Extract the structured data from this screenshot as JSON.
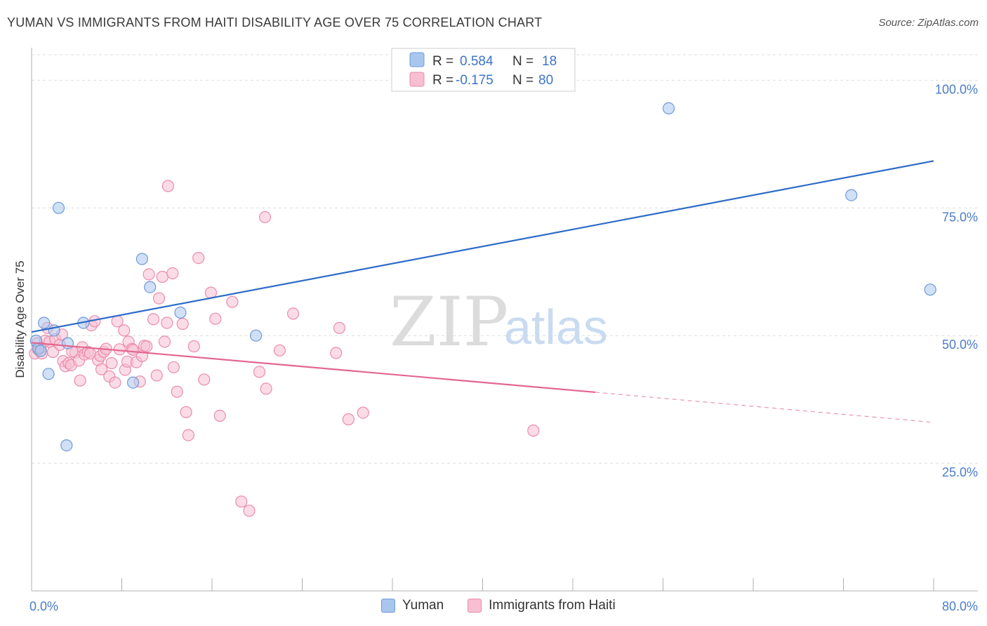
{
  "header": {
    "title": "YUMAN VS IMMIGRANTS FROM HAITI DISABILITY AGE OVER 75 CORRELATION CHART",
    "source": "Source: ZipAtlas.com"
  },
  "watermark": {
    "zip": "ZIP",
    "atlas": "atlas"
  },
  "legend_box": {
    "rows": [
      {
        "r_label": "R =",
        "r_value": "0.584",
        "n_label": "N =",
        "n_value": "18"
      },
      {
        "r_label": "R =",
        "r_value": "-0.175",
        "n_label": "N =",
        "n_value": "80"
      }
    ]
  },
  "bottom_legend": {
    "items": [
      {
        "label": "Yuman"
      },
      {
        "label": "Immigrants from Haiti"
      }
    ]
  },
  "colors": {
    "yuman_fill": "#a9c6ee",
    "yuman_stroke": "#6f9ad8",
    "yuman_line": "#2d6bc8",
    "haiti_fill": "#f7bfd1",
    "haiti_stroke": "#ea8cab",
    "haiti_line": "#e2678f",
    "tick_text": "#4a7cc9",
    "grid": "#dddddd"
  },
  "chart_data": {
    "type": "scatter",
    "title": "YUMAN VS IMMIGRANTS FROM HAITI DISABILITY AGE OVER 75 CORRELATION CHART",
    "xlabel": "",
    "ylabel": "Disability Age Over 75",
    "xlim": [
      0,
      80
    ],
    "ylim": [
      0,
      105
    ],
    "x_tick_labels": [
      {
        "value": 0,
        "label": "0.0%"
      },
      {
        "value": 80,
        "label": "80.0%"
      }
    ],
    "y_tick_labels": [
      {
        "value": 25,
        "label": "25.0%"
      },
      {
        "value": 50,
        "label": "50.0%"
      },
      {
        "value": 75,
        "label": "75.0%"
      },
      {
        "value": 100,
        "label": "100.0%"
      }
    ],
    "grid": true,
    "series": [
      {
        "name": "Yuman",
        "r": 0.584,
        "n": 18,
        "points": [
          [
            0.4,
            49.0
          ],
          [
            0.6,
            47.5
          ],
          [
            0.8,
            47.0
          ],
          [
            1.1,
            52.5
          ],
          [
            1.5,
            42.5
          ],
          [
            2.0,
            51.0
          ],
          [
            2.4,
            75.0
          ],
          [
            3.1,
            28.5
          ],
          [
            3.2,
            48.5
          ],
          [
            4.6,
            52.5
          ],
          [
            9.0,
            40.8
          ],
          [
            9.8,
            65.0
          ],
          [
            10.5,
            59.5
          ],
          [
            13.2,
            54.5
          ],
          [
            19.9,
            50.0
          ],
          [
            56.5,
            94.5
          ],
          [
            72.7,
            77.5
          ],
          [
            79.7,
            59.0
          ]
        ],
        "trend": {
          "x": [
            0,
            80
          ],
          "y": [
            50.7,
            84.2
          ],
          "style": "solid"
        }
      },
      {
        "name": "Immigrants from Haiti",
        "r": -0.175,
        "n": 80,
        "points": [
          [
            0.3,
            46.5
          ],
          [
            0.5,
            48.5
          ],
          [
            0.6,
            47.2
          ],
          [
            0.9,
            46.5
          ],
          [
            1.2,
            49.0
          ],
          [
            1.4,
            51.5
          ],
          [
            1.6,
            48.8
          ],
          [
            1.9,
            46.8
          ],
          [
            2.1,
            49.3
          ],
          [
            2.5,
            48.2
          ],
          [
            2.7,
            50.2
          ],
          [
            2.8,
            45.0
          ],
          [
            3.0,
            44.0
          ],
          [
            3.3,
            44.6
          ],
          [
            3.5,
            44.2
          ],
          [
            3.9,
            46.7
          ],
          [
            4.2,
            45.1
          ],
          [
            4.3,
            41.2
          ],
          [
            4.5,
            47.7
          ],
          [
            4.7,
            46.3
          ],
          [
            5.0,
            46.8
          ],
          [
            5.2,
            46.5
          ],
          [
            5.3,
            52.0
          ],
          [
            5.6,
            52.8
          ],
          [
            5.9,
            45.2
          ],
          [
            6.1,
            46.0
          ],
          [
            6.2,
            43.4
          ],
          [
            6.4,
            46.8
          ],
          [
            6.6,
            47.4
          ],
          [
            6.9,
            42.0
          ],
          [
            7.1,
            44.6
          ],
          [
            7.4,
            40.8
          ],
          [
            7.6,
            52.8
          ],
          [
            7.8,
            47.3
          ],
          [
            8.2,
            51.0
          ],
          [
            8.3,
            43.3
          ],
          [
            8.5,
            44.9
          ],
          [
            8.6,
            48.8
          ],
          [
            8.9,
            47.4
          ],
          [
            9.3,
            44.8
          ],
          [
            9.6,
            41.0
          ],
          [
            9.8,
            46.0
          ],
          [
            10.0,
            48.0
          ],
          [
            10.2,
            47.9
          ],
          [
            10.4,
            62.0
          ],
          [
            10.8,
            53.2
          ],
          [
            11.1,
            42.2
          ],
          [
            11.3,
            57.3
          ],
          [
            11.6,
            61.5
          ],
          [
            11.8,
            48.8
          ],
          [
            12.0,
            52.5
          ],
          [
            12.1,
            79.3
          ],
          [
            12.5,
            62.2
          ],
          [
            12.6,
            43.8
          ],
          [
            12.9,
            39.0
          ],
          [
            13.4,
            52.3
          ],
          [
            13.7,
            35.0
          ],
          [
            13.9,
            30.5
          ],
          [
            14.4,
            47.9
          ],
          [
            14.8,
            65.2
          ],
          [
            15.3,
            41.4
          ],
          [
            15.9,
            58.4
          ],
          [
            16.3,
            53.3
          ],
          [
            16.7,
            34.3
          ],
          [
            17.8,
            56.6
          ],
          [
            18.6,
            17.5
          ],
          [
            19.3,
            15.7
          ],
          [
            20.2,
            42.9
          ],
          [
            20.7,
            73.2
          ],
          [
            20.8,
            39.6
          ],
          [
            22.0,
            47.1
          ],
          [
            23.2,
            54.3
          ],
          [
            27.0,
            46.6
          ],
          [
            27.3,
            51.5
          ],
          [
            28.1,
            33.6
          ],
          [
            29.4,
            34.9
          ],
          [
            44.5,
            31.4
          ],
          [
            0.8,
            47.6
          ],
          [
            3.6,
            46.9
          ],
          [
            9.0,
            47.2
          ]
        ],
        "trend": {
          "x": [
            0,
            50
          ],
          "y": [
            48.6,
            38.9
          ],
          "style": "solid"
        },
        "trend_extension": {
          "x": [
            50,
            80
          ],
          "y": [
            38.9,
            33.0
          ],
          "style": "dashed"
        }
      }
    ]
  }
}
